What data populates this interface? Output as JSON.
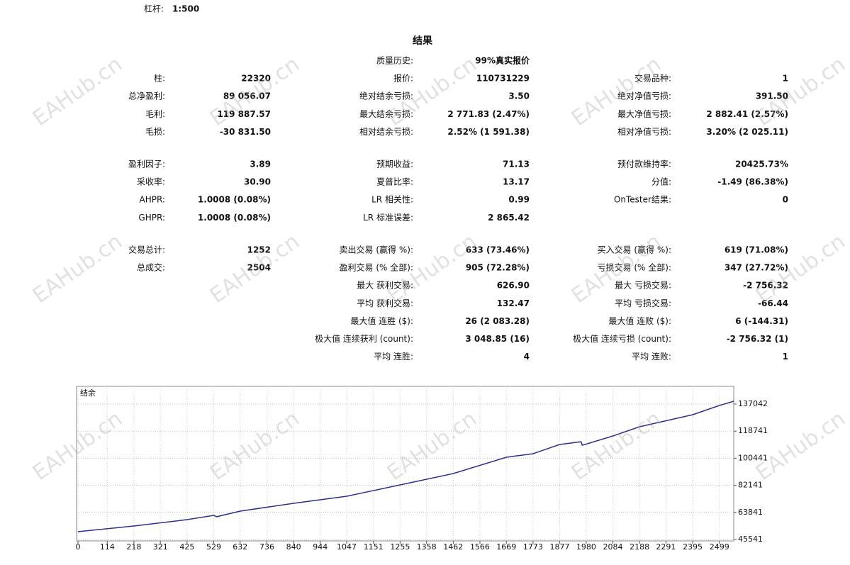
{
  "leverage": {
    "label": "杠杆:",
    "value": "1:500"
  },
  "watermark": "EAHub.cn",
  "results": {
    "title": "结果",
    "groups": [
      [
        [
          null,
          {
            "label": "质量历史:",
            "value": "99%真实报价"
          },
          null
        ],
        [
          {
            "label": "柱:",
            "value": "22320"
          },
          {
            "label": "报价:",
            "value": "110731229"
          },
          {
            "label": "交易品种:",
            "value": "1"
          }
        ],
        [
          {
            "label": "总净盈利:",
            "value": "89 056.07"
          },
          {
            "label": "绝对结余亏损:",
            "value": "3.50"
          },
          {
            "label": "绝对净值亏损:",
            "value": "391.50"
          }
        ],
        [
          {
            "label": "毛利:",
            "value": "119 887.57"
          },
          {
            "label": "最大结余亏损:",
            "value": "2 771.83 (2.47%)"
          },
          {
            "label": "最大净值亏损:",
            "value": "2 882.41 (2.57%)"
          }
        ],
        [
          {
            "label": "毛损:",
            "value": "-30 831.50"
          },
          {
            "label": "相对结余亏损:",
            "value": "2.52% (1 591.38)"
          },
          {
            "label": "相对净值亏损:",
            "value": "3.20% (2 025.11)"
          }
        ]
      ],
      [
        [
          {
            "label": "盈利因子:",
            "value": "3.89"
          },
          {
            "label": "预期收益:",
            "value": "71.13"
          },
          {
            "label": "预付款维持率:",
            "value": "20425.73%"
          }
        ],
        [
          {
            "label": "采收率:",
            "value": "30.90"
          },
          {
            "label": "夏普比率:",
            "value": "13.17"
          },
          {
            "label": "分值:",
            "value": "-1.49 (86.38%)"
          }
        ],
        [
          {
            "label": "AHPR:",
            "value": "1.0008 (0.08%)"
          },
          {
            "label": "LR 相关性:",
            "value": "0.99"
          },
          {
            "label": "OnTester结果:",
            "value": "0"
          }
        ],
        [
          {
            "label": "GHPR:",
            "value": "1.0008 (0.08%)"
          },
          {
            "label": "LR 标准误差:",
            "value": "2 865.42"
          },
          null
        ]
      ],
      [
        [
          {
            "label": "交易总计:",
            "value": "1252"
          },
          {
            "label": "卖出交易 (赢得 %):",
            "value": "633 (73.46%)"
          },
          {
            "label": "买入交易 (赢得 %):",
            "value": "619 (71.08%)"
          }
        ],
        [
          {
            "label": "总成交:",
            "value": "2504"
          },
          {
            "label": "盈利交易 (% 全部):",
            "value": "905 (72.28%)"
          },
          {
            "label": "亏损交易 (% 全部):",
            "value": "347 (27.72%)"
          }
        ],
        [
          null,
          {
            "label": "最大 获利交易:",
            "value": "626.90"
          },
          {
            "label": "最大 亏损交易:",
            "value": "-2 756.32"
          }
        ],
        [
          null,
          {
            "label": "平均 获利交易:",
            "value": "132.47"
          },
          {
            "label": "平均 亏损交易:",
            "value": "-66.44"
          }
        ],
        [
          null,
          {
            "label": "最大值 连胜 ($):",
            "value": "26 (2 083.28)"
          },
          {
            "label": "最大值 连败 ($):",
            "value": "6 (-144.31)"
          }
        ],
        [
          null,
          {
            "label": "极大值 连续获利 (count):",
            "value": "3 048.85 (16)"
          },
          {
            "label": "极大值 连续亏损 (count):",
            "value": "-2 756.32 (1)"
          }
        ],
        [
          null,
          {
            "label": "平均 连胜:",
            "value": "4"
          },
          {
            "label": "平均 连败:",
            "value": "1"
          }
        ]
      ]
    ]
  },
  "chart_data": {
    "type": "line",
    "title": "结余",
    "color": "#2f2f8f",
    "x": [
      0,
      218,
      425,
      529,
      540,
      632,
      840,
      1047,
      1255,
      1462,
      1669,
      1773,
      1877,
      1960,
      1965,
      2084,
      2188,
      2395,
      2499,
      2555
    ],
    "values": [
      50800,
      54640,
      58950,
      61830,
      60900,
      64700,
      69970,
      74760,
      82430,
      90090,
      101110,
      103510,
      109740,
      111600,
      109200,
      115490,
      121710,
      129850,
      136080,
      138960
    ],
    "xlim": [
      0,
      2555
    ],
    "ylim": [
      45541,
      149000
    ],
    "xticks": [
      0,
      114,
      218,
      321,
      425,
      529,
      632,
      736,
      840,
      944,
      1047,
      1151,
      1255,
      1358,
      1462,
      1566,
      1669,
      1773,
      1877,
      1980,
      2084,
      2188,
      2291,
      2395,
      2499
    ],
    "yticks": [
      45541,
      63841,
      82141,
      100441,
      118741,
      137042
    ],
    "grid": true
  }
}
